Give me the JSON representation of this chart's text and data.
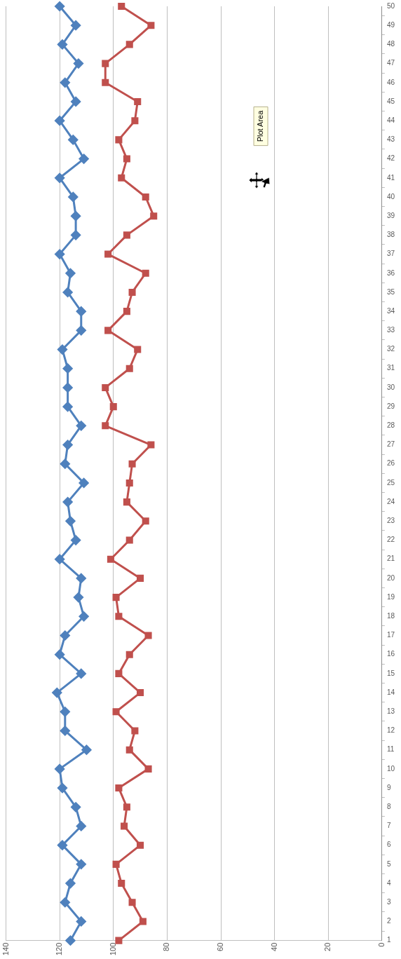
{
  "chart_data": {
    "type": "line",
    "orientation": "horizontal",
    "categories": [
      "50",
      "49",
      "48",
      "47",
      "46",
      "45",
      "44",
      "43",
      "42",
      "41",
      "40",
      "39",
      "38",
      "37",
      "36",
      "35",
      "34",
      "33",
      "32",
      "31",
      "30",
      "29",
      "28",
      "27",
      "26",
      "25",
      "24",
      "23",
      "22",
      "21",
      "20",
      "19",
      "18",
      "17",
      "16",
      "15",
      "14",
      "13",
      "12",
      "11",
      "10",
      "9",
      "8",
      "7",
      "6",
      "5",
      "4",
      "3",
      "2",
      "1"
    ],
    "series": [
      {
        "color": "#4f81bd",
        "marker": "diamond",
        "values": [
          120,
          114,
          119,
          113,
          118,
          114,
          120,
          115,
          111,
          120,
          115,
          114,
          114,
          120,
          116,
          117,
          112,
          112,
          119,
          117,
          117,
          117,
          112,
          117,
          118,
          111,
          117,
          116,
          114,
          120,
          112,
          113,
          111,
          118,
          120,
          112,
          121,
          118,
          118,
          110,
          120,
          119,
          114,
          112,
          119,
          112,
          116,
          118,
          112,
          116
        ]
      },
      {
        "color": "#c0504d",
        "marker": "square",
        "values": [
          97,
          86,
          94,
          103,
          103,
          91,
          92,
          98,
          95,
          97,
          88,
          85,
          95,
          102,
          88,
          93,
          95,
          102,
          91,
          94,
          103,
          100,
          103,
          86,
          93,
          94,
          95,
          88,
          94,
          101,
          90,
          99,
          98,
          87,
          94,
          98,
          90,
          99,
          92,
          94,
          87,
          98,
          95,
          96,
          90,
          99,
          97,
          93,
          89,
          98
        ]
      }
    ],
    "xlim": [
      140,
      0
    ],
    "xticks": [
      0,
      20,
      40,
      60,
      80,
      100,
      120,
      140
    ],
    "grid": "x",
    "annotations": [
      "Plot Area"
    ]
  }
}
